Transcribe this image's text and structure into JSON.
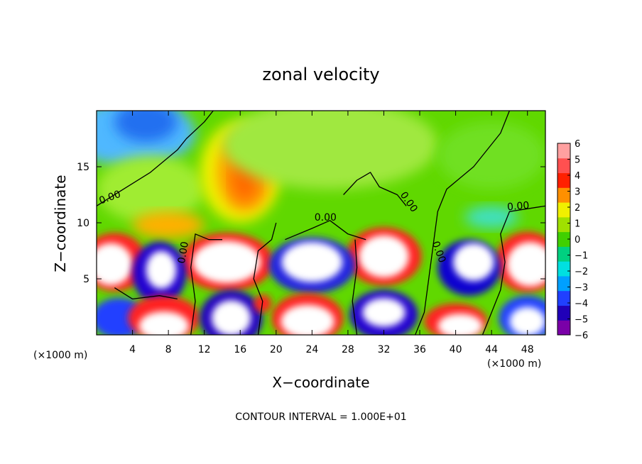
{
  "chart_data": {
    "type": "heatmap",
    "title": "zonal velocity",
    "xlabel": "X−coordinate",
    "ylabel": "Z−coordinate",
    "x_unit_left": "(×1000 m)",
    "x_unit_right": "(×1000 m)",
    "xlim": [
      0,
      50
    ],
    "ylim": [
      0,
      20
    ],
    "x_ticks": [
      4,
      8,
      12,
      16,
      20,
      24,
      28,
      32,
      36,
      40,
      44,
      48
    ],
    "y_ticks": [
      5,
      10,
      15
    ],
    "contour_interval_text": "CONTOUR INTERVAL = 1.000E+01",
    "contour_labels": [
      {
        "text": "0.00",
        "x": 1.6,
        "y": 12.0,
        "rot": -20
      },
      {
        "text": "0.00",
        "x": 10.0,
        "y": 7.3,
        "rot": -80
      },
      {
        "text": "0.00",
        "x": 25.5,
        "y": 10.2,
        "rot": 0
      },
      {
        "text": "0.00",
        "x": 34.5,
        "y": 11.7,
        "rot": 55
      },
      {
        "text": "0.00",
        "x": 37.8,
        "y": 7.3,
        "rot": 70
      },
      {
        "text": "0.00",
        "x": 47.0,
        "y": 11.2,
        "rot": -5
      }
    ],
    "colorbar": {
      "min": -6,
      "max": 6,
      "ticks": [
        "6",
        "5",
        "4",
        "3",
        "2",
        "1",
        "0",
        "−1",
        "−2",
        "−3",
        "−4",
        "−5",
        "−6"
      ],
      "colors": [
        "#7a00a8",
        "#2000b8",
        "#2040ff",
        "#00a0ff",
        "#00e0e0",
        "#00d080",
        "#40d000",
        "#a0e000",
        "#f0f000",
        "#ff9000",
        "#ff2000",
        "#ff5050",
        "#ffa0a0"
      ]
    }
  }
}
